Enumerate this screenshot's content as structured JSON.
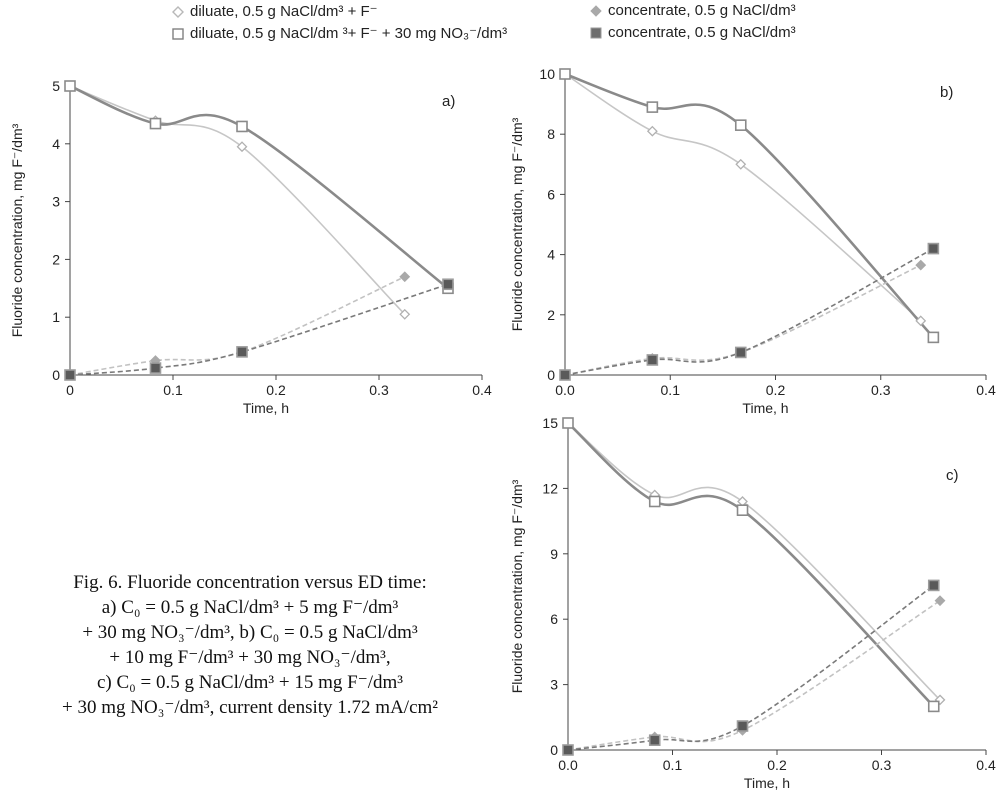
{
  "legend": [
    {
      "label": "diluate, 0.5 g NaCl/dm³ + F⁻",
      "marker": "open-diamond",
      "color": "#b8b8b8"
    },
    {
      "label": "diluate, 0.5 g NaCl/dm ³+ F⁻ + 30 mg NO₃⁻/dm³",
      "marker": "open-square",
      "color": "#808080"
    },
    {
      "label": "concentrate, 0.5 g NaCl/dm³",
      "marker": "filled-diamond",
      "color": "#a9a9a9"
    },
    {
      "label": "concentrate, 0.5 g NaCl/dm³",
      "marker": "filled-square",
      "color": "#6e6e6e"
    }
  ],
  "chart_data": [
    {
      "panel": "a)",
      "type": "line",
      "xlabel": "Time, h",
      "ylabel": "Fluoride concentration,  mg F⁻/dm³",
      "xlim": [
        0,
        0.4
      ],
      "ylim": [
        0,
        5
      ],
      "xticks": [
        "0",
        "0.1",
        "0.2",
        "0.3",
        "0.4"
      ],
      "yticks": [
        "0",
        "1",
        "2",
        "3",
        "4",
        "5"
      ],
      "series": [
        {
          "name": "diluate, 0.5 g NaCl/dm³ + F⁻",
          "x": [
            0,
            0.083,
            0.167,
            0.325
          ],
          "y": [
            5.0,
            4.4,
            3.95,
            1.05
          ]
        },
        {
          "name": "diluate, 0.5 g NaCl/dm ³+ F⁻ + 30 mg NO₃⁻/dm³",
          "x": [
            0,
            0.083,
            0.167,
            0.367
          ],
          "y": [
            5.0,
            4.35,
            4.3,
            1.5
          ]
        },
        {
          "name": "concentrate, 0.5 g NaCl/dm³",
          "x": [
            0,
            0.083,
            0.167,
            0.325
          ],
          "y": [
            0,
            0.25,
            0.4,
            1.7
          ]
        },
        {
          "name": "concentrate, 0.5 g NaCl/dm³",
          "x": [
            0,
            0.083,
            0.167,
            0.367
          ],
          "y": [
            0,
            0.12,
            0.4,
            1.57
          ]
        }
      ]
    },
    {
      "panel": "b)",
      "type": "line",
      "xlabel": "Time, h",
      "ylabel": "Fluoride concentration,  mg F⁻/dm³",
      "xlim": [
        0,
        0.4
      ],
      "ylim": [
        0,
        10
      ],
      "xticks": [
        "0.0",
        "0.1",
        "0.2",
        "0.3",
        "0.4"
      ],
      "yticks": [
        "0",
        "2",
        "4",
        "6",
        "8",
        "10"
      ],
      "series": [
        {
          "name": "diluate, 0.5 g NaCl/dm³ + F⁻",
          "x": [
            0,
            0.083,
            0.167,
            0.338
          ],
          "y": [
            10.0,
            8.1,
            7.0,
            1.8
          ]
        },
        {
          "name": "diluate, 0.5 g NaCl/dm ³+ F⁻ + 30 mg NO₃⁻/dm³",
          "x": [
            0,
            0.083,
            0.167,
            0.35
          ],
          "y": [
            10.0,
            8.9,
            8.3,
            1.25
          ]
        },
        {
          "name": "concentrate, 0.5 g NaCl/dm³",
          "x": [
            0,
            0.083,
            0.167,
            0.338
          ],
          "y": [
            0,
            0.55,
            0.75,
            3.65
          ]
        },
        {
          "name": "concentrate, 0.5 g NaCl/dm³",
          "x": [
            0,
            0.083,
            0.167,
            0.35
          ],
          "y": [
            0,
            0.5,
            0.75,
            4.2
          ]
        }
      ]
    },
    {
      "panel": "c)",
      "type": "line",
      "xlabel": "Time, h",
      "ylabel": "Fluoride concentration,  mg F⁻/dm³",
      "xlim": [
        0,
        0.4
      ],
      "ylim": [
        0,
        15
      ],
      "xticks": [
        "0.0",
        "0.1",
        "0.2",
        "0.3",
        "0.4"
      ],
      "yticks": [
        "0",
        "3",
        "6",
        "9",
        "12",
        "15"
      ],
      "series": [
        {
          "name": "diluate, 0.5 g NaCl/dm³ + F⁻",
          "x": [
            0,
            0.083,
            0.167,
            0.356
          ],
          "y": [
            15.0,
            11.7,
            11.4,
            2.3
          ]
        },
        {
          "name": "diluate, 0.5 g NaCl/dm ³+ F⁻ + 30 mg NO₃⁻/dm³",
          "x": [
            0,
            0.083,
            0.167,
            0.35
          ],
          "y": [
            15.0,
            11.4,
            11.0,
            2.0
          ]
        },
        {
          "name": "concentrate, 0.5 g NaCl/dm³",
          "x": [
            0,
            0.083,
            0.167,
            0.356
          ],
          "y": [
            0,
            0.6,
            0.9,
            6.85
          ]
        },
        {
          "name": "concentrate, 0.5 g NaCl/dm³",
          "x": [
            0,
            0.083,
            0.167,
            0.35
          ],
          "y": [
            0,
            0.45,
            1.1,
            7.55
          ]
        }
      ]
    }
  ],
  "caption": [
    "Fig. 6. Fluoride concentration versus ED time:",
    "a) C₀ = 0.5 g NaCl/dm³ + 5 mg F⁻/dm³",
    "+ 30 mg NO₃⁻/dm³, b) C₀ = 0.5 g NaCl/dm³",
    "+ 10 mg F⁻/dm³ + 30 mg NO₃⁻/dm³,",
    "c) C₀ = 0.5 g NaCl/dm³ + 15 mg F⁻/dm³",
    "+ 30 mg NO₃⁻/dm³, current density 1.72 mA/cm²"
  ]
}
